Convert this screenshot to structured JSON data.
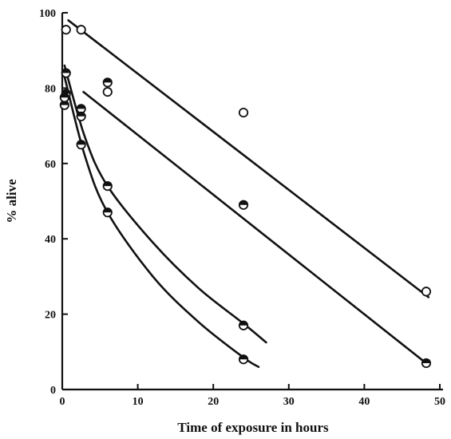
{
  "chart_data": {
    "type": "scatter",
    "title": "",
    "xlabel": "Time of exposure in hours",
    "ylabel": "% alive",
    "xlim": [
      0,
      50
    ],
    "ylim": [
      0,
      100
    ],
    "xticks": [
      "0",
      "10",
      "20",
      "30",
      "40",
      "50"
    ],
    "yticks": [
      "0",
      "20",
      "40",
      "60",
      "80",
      "100"
    ],
    "grid": false,
    "series": [
      {
        "marker": "open",
        "points": [
          [
            0.5,
            95.5
          ],
          [
            2.5,
            95.5
          ],
          [
            6,
            79
          ],
          [
            24,
            73.5
          ],
          [
            48.2,
            26
          ]
        ],
        "fit": {
          "kind": "line",
          "x": [
            0.8,
            48.5
          ],
          "y": [
            98,
            24.5
          ]
        }
      },
      {
        "marker": "half-filled",
        "points": [
          [
            0.3,
            75.5
          ],
          [
            0.5,
            78.5
          ],
          [
            2.5,
            74.5
          ],
          [
            6,
            81.5
          ],
          [
            24,
            49
          ],
          [
            48.2,
            7
          ]
        ],
        "fit": {
          "kind": "line",
          "x": [
            2.8,
            48.5
          ],
          "y": [
            79,
            6.5
          ]
        }
      },
      {
        "marker": "half-filled",
        "points": [
          [
            0.5,
            84
          ],
          [
            2.5,
            72.5
          ],
          [
            6,
            54
          ],
          [
            24,
            17
          ]
        ],
        "fit": {
          "kind": "curve",
          "x": [
            0.3,
            3,
            6,
            12,
            18,
            24,
            27
          ],
          "y": [
            86,
            67,
            54,
            39,
            27,
            17.5,
            12.5
          ]
        }
      },
      {
        "marker": "half-filled",
        "points": [
          [
            0.3,
            77.5
          ],
          [
            2.5,
            65
          ],
          [
            6,
            47
          ],
          [
            24,
            8
          ]
        ],
        "fit": {
          "kind": "curve",
          "x": [
            0.3,
            3,
            6,
            12,
            18,
            24,
            26
          ],
          "y": [
            83,
            62,
            47,
            30,
            18,
            8.5,
            6
          ]
        }
      }
    ]
  }
}
